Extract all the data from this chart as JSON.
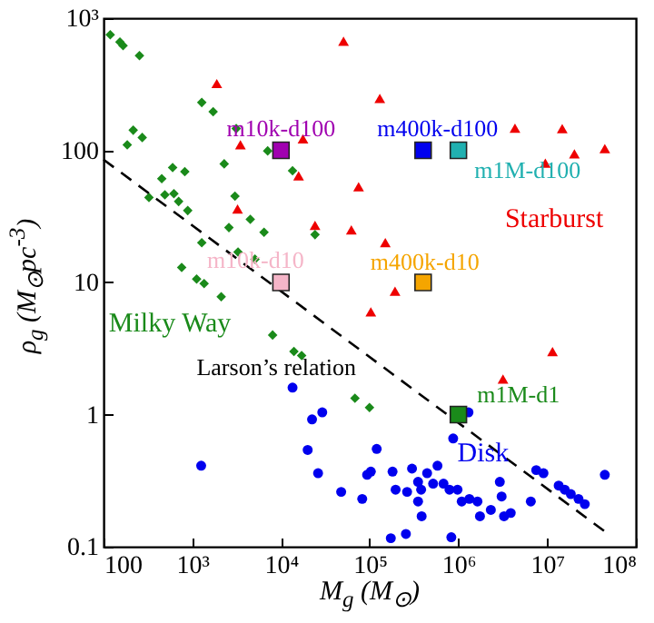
{
  "chart_data": {
    "type": "scatter",
    "xlabel": "M$_{g}$ (M$_{⊙}$)",
    "ylabel": "ρ$_{g}$ (M$_{⊙}$pc$^{-3}$)",
    "log": "xy",
    "xlim": [
      100,
      100000000
    ],
    "ylim": [
      0.1,
      1000
    ],
    "xticks": [
      100,
      {
        "value": 1000,
        "label": "10³"
      },
      {
        "value": 10000,
        "label": "10⁴"
      },
      {
        "value": 100000,
        "label": "10⁵"
      },
      {
        "value": 1000000,
        "label": "10⁶"
      },
      {
        "value": 10000000,
        "label": "10⁷"
      },
      {
        "value": 100000000,
        "label": "10⁸"
      }
    ],
    "yticks": [
      0.1,
      1,
      10,
      100,
      {
        "value": 1000,
        "label": "10³"
      }
    ],
    "grid": false,
    "series": [
      {
        "name": "Starburst",
        "marker": "triangle",
        "color": "#ee0000",
        "x": [
          1890,
          50700,
          3490,
          17700,
          15800,
          75000,
          3240,
          24200,
          62100,
          130000,
          4340000,
          14800000,
          20300000,
          44700000,
          9550000,
          150000,
          193000,
          103000,
          11500000,
          3180000
        ],
        "values": [
          320,
          670,
          110,
          122,
          64,
          53,
          36,
          27,
          25,
          247,
          147,
          146,
          94,
          103,
          80,
          20,
          8.6,
          6.0,
          3.0,
          1.86
        ]
      },
      {
        "name": "Milky Way",
        "marker": "diamond",
        "color": "#1a8a1a",
        "x": [
          119,
          153,
          166,
          254,
          185,
          216,
          273,
          1280,
          1720,
          2290,
          3130,
          7080,
          13500,
          453,
          601,
          824,
          325,
          491,
          621,
          702,
          889,
          3030,
          2590,
          4510,
          6440,
          24200,
          1280,
          3280,
          5090,
          760,
          1120,
          1360,
          2120,
          8050,
          14000,
          17100,
          68200,
          99500
        ],
        "values": [
          750,
          660,
          620,
          520,
          110,
          142,
          125,
          230,
          196,
          79,
          146,
          99,
          70,
          61,
          74,
          69,
          44,
          46,
          47,
          41,
          35,
          45,
          26,
          30,
          24,
          23,
          20,
          17,
          15,
          13,
          10.6,
          9.8,
          7.8,
          4.0,
          3.0,
          2.8,
          1.33,
          1.13
        ]
      },
      {
        "name": "Disk",
        "marker": "circle",
        "color": "#0000ee",
        "x": [
          13500,
          22400,
          29200,
          20000,
          1260,
          26200,
          47700,
          82400,
          1300000,
          873000,
          120000,
          103000,
          93500,
          181000,
          300000,
          444000,
          581000,
          196000,
          264000,
          351000,
          380000,
          519000,
          679000,
          794000,
          977000,
          351000,
          1090000,
          1330000,
          1640000,
          385000,
          1750000,
          2320000,
          2930000,
          3070000,
          3270000,
          3890000,
          6550000,
          7540000,
          9100000,
          13500000,
          15800000,
          18500000,
          22600000,
          26600000,
          44700000,
          173000,
          256000,
          832000
        ],
        "values": [
          1.6,
          0.92,
          1.04,
          0.54,
          0.41,
          0.36,
          0.26,
          0.23,
          1.04,
          0.66,
          0.55,
          0.37,
          0.35,
          0.37,
          0.39,
          0.36,
          0.41,
          0.27,
          0.26,
          0.31,
          0.27,
          0.3,
          0.3,
          0.27,
          0.27,
          0.22,
          0.22,
          0.23,
          0.22,
          0.17,
          0.17,
          0.19,
          0.31,
          0.24,
          0.17,
          0.18,
          0.22,
          0.38,
          0.36,
          0.29,
          0.27,
          0.25,
          0.23,
          0.21,
          0.35,
          0.116,
          0.125,
          0.118
        ]
      },
      {
        "name": "Larson’s relation",
        "type": "line",
        "line_style": "dashed",
        "color": "#000000",
        "x": [
          100,
          45000000
        ],
        "values": [
          85,
          0.13
        ]
      },
      {
        "name": "m10k-d100",
        "marker": "square",
        "color": "#a000b0",
        "x": [
          10000
        ],
        "values": [
          100
        ]
      },
      {
        "name": "m400k-d100",
        "marker": "square",
        "color": "#0000ee",
        "x": [
          400000
        ],
        "values": [
          100
        ]
      },
      {
        "name": "m1M-d100",
        "marker": "square",
        "color": "#20b0b0",
        "x": [
          1000000
        ],
        "values": [
          100
        ]
      },
      {
        "name": "m10k-d10",
        "marker": "square",
        "color": "#f5b5c8",
        "x": [
          10000
        ],
        "values": [
          10
        ]
      },
      {
        "name": "m400k-d10",
        "marker": "square",
        "color": "#f5a500",
        "x": [
          400000
        ],
        "values": [
          10
        ]
      },
      {
        "name": "m1M-d1",
        "marker": "square",
        "color": "#1a8a1a",
        "x": [
          1000000
        ],
        "values": [
          1
        ]
      }
    ]
  }
}
